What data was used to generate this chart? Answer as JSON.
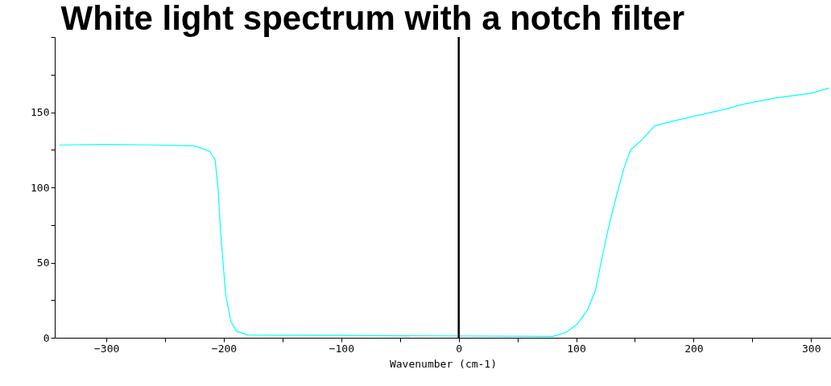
{
  "chart_data": {
    "type": "line",
    "title": "White light spectrum with a notch filter",
    "xlabel": "Wavenumber (cm-1)",
    "xlim": [
      -344,
      317
    ],
    "ylim": [
      0,
      200
    ],
    "xticks": [
      {
        "value": -300,
        "label": "−300"
      },
      {
        "value": -250,
        "label": null
      },
      {
        "value": -200,
        "label": "−200"
      },
      {
        "value": -150,
        "label": null
      },
      {
        "value": -100,
        "label": "−100"
      },
      {
        "value": -50,
        "label": null
      },
      0,
      {
        "value": 50,
        "label": null
      },
      100,
      {
        "value": 150,
        "label": null
      },
      200,
      {
        "value": 250,
        "label": null
      },
      300
    ],
    "yticks": [
      0,
      {
        "value": 25,
        "label": null
      },
      50,
      {
        "value": 75,
        "label": null
      },
      100,
      {
        "value": 125,
        "label": null
      },
      150,
      {
        "value": 175,
        "label": null
      },
      {
        "value": 200,
        "label": null
      }
    ],
    "grid": false,
    "marker": "none",
    "line_style": "solid",
    "ref_lines": [
      {
        "axis": "x",
        "value": 0,
        "color": "#000000"
      }
    ],
    "series": [
      {
        "color": "#00ffff",
        "x": [
          -340,
          -300,
          -260,
          -225.6,
          -219,
          -212,
          -210,
          -207.5,
          -205,
          -203,
          -200.7,
          -198.4,
          -194,
          -189.3,
          -180,
          -100,
          0,
          80,
          91.5,
          100.7,
          109.8,
          116.6,
          121.2,
          128,
          135,
          140.6,
          146.3,
          155.5,
          166.8,
          187.4,
          210,
          226,
          242,
          269.6,
          299.3,
          315.3
        ],
        "values": [
          128.2,
          128.5,
          128.2,
          127.6,
          126,
          124,
          121.4,
          118.4,
          100,
          73.2,
          50,
          28.5,
          10.7,
          4.5,
          1.8,
          1.5,
          1.2,
          0.9,
          3.6,
          8.9,
          18.7,
          32,
          50,
          75,
          96.4,
          112.5,
          125,
          131.2,
          141,
          145,
          149,
          151.8,
          155.3,
          159.4,
          162.5,
          166
        ]
      }
    ]
  }
}
